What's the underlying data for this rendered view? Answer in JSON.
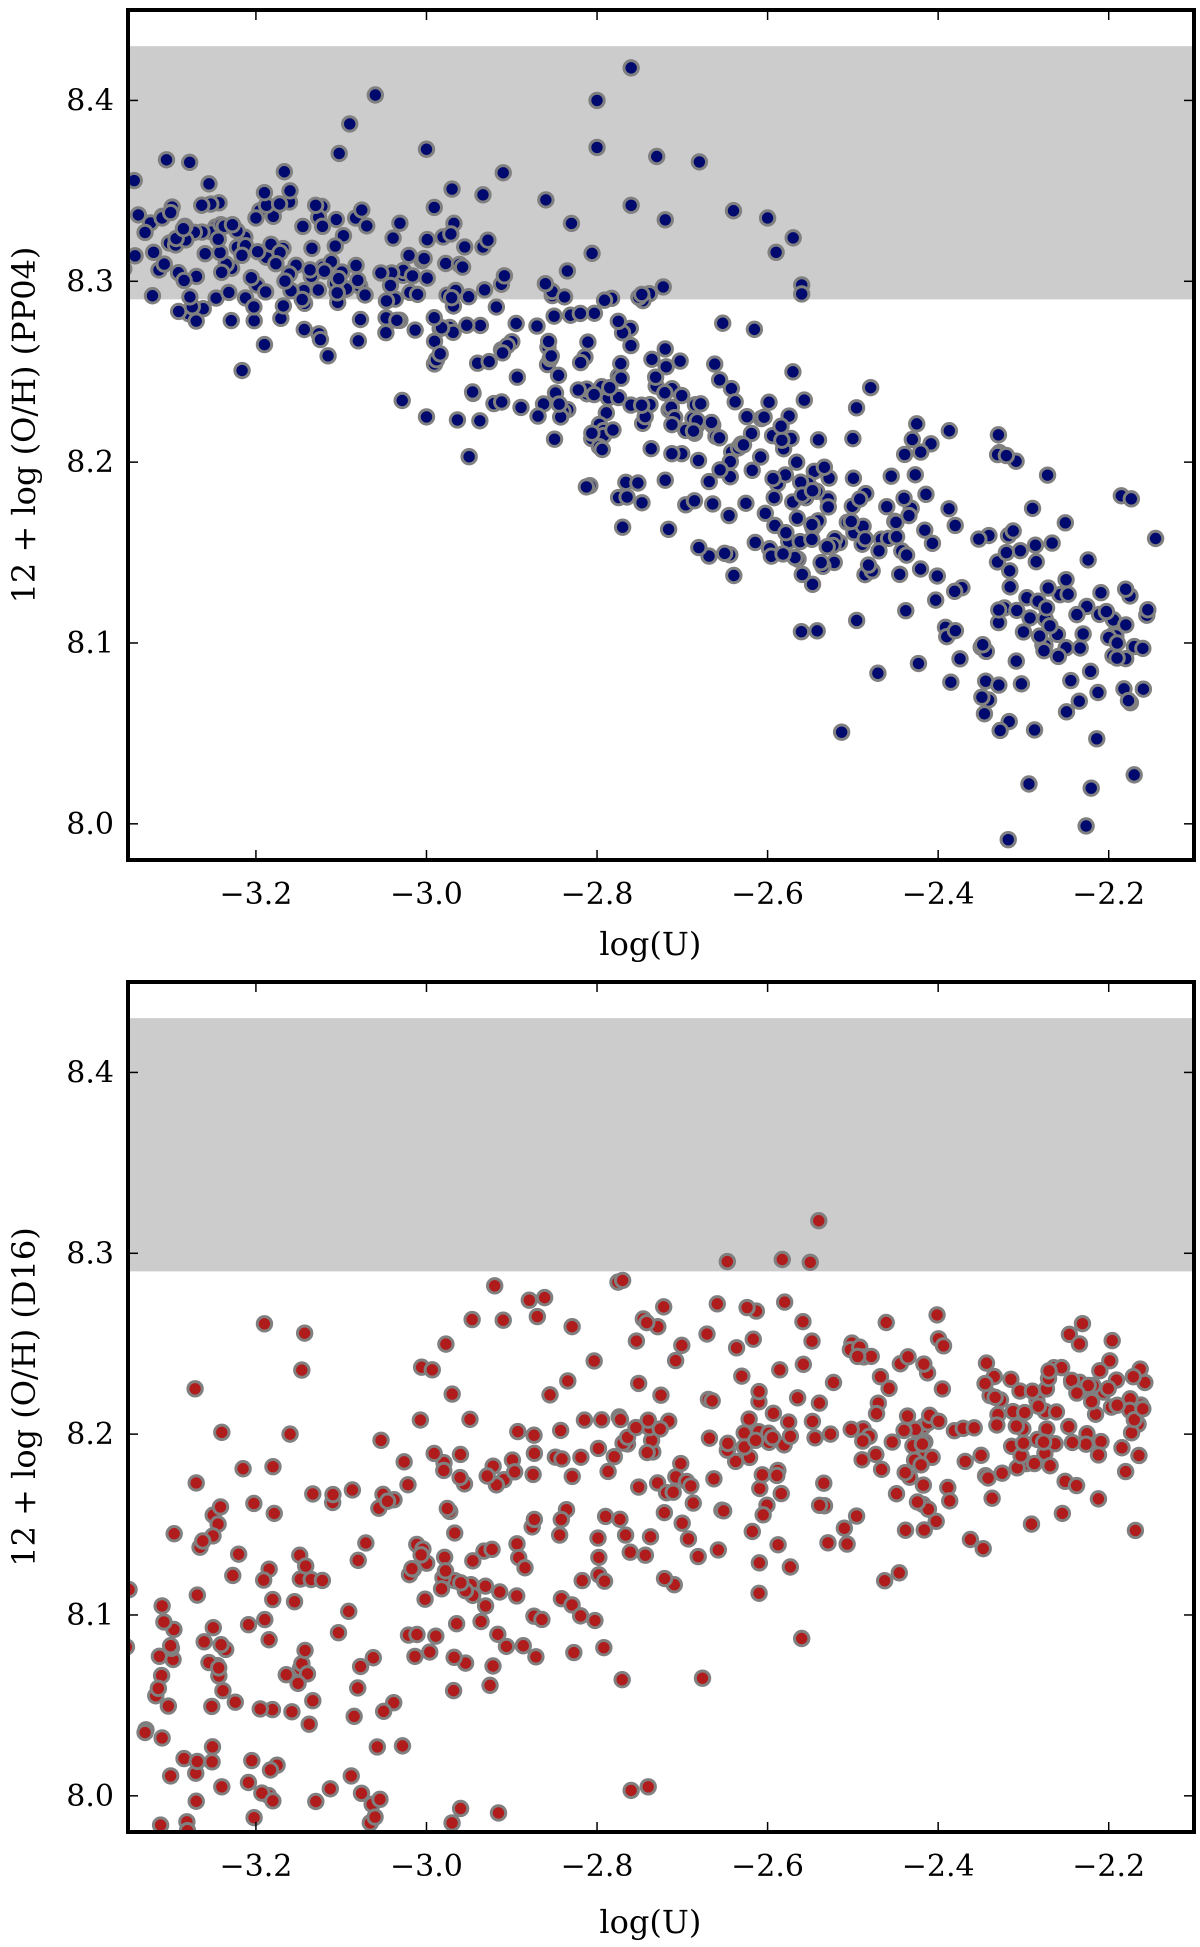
{
  "chart_data": [
    {
      "type": "scatter",
      "panel": "top",
      "xlabel": "log(U)",
      "ylabel": "12 + log (O/H) (PP04)",
      "xlim": [
        -3.35,
        -2.1
      ],
      "ylim": [
        7.98,
        8.45
      ],
      "xticks": [
        -3.2,
        -3.0,
        -2.8,
        -2.6,
        -2.4,
        -2.2
      ],
      "xtick_labels": [
        "−3.2",
        "−3.0",
        "−2.8",
        "−2.6",
        "−2.4",
        "−2.2"
      ],
      "yticks": [
        8.0,
        8.1,
        8.2,
        8.3,
        8.4
      ],
      "ytick_labels": [
        "8.0",
        "8.1",
        "8.2",
        "8.3",
        "8.4"
      ],
      "band": {
        "y_low": 8.29,
        "y_high": 8.43,
        "color": "#cccccc"
      },
      "marker_fill": "#000a6e",
      "marker_edge": "#808080",
      "trend": {
        "description": "decreasing",
        "anchors_x": [
          -3.33,
          -3.2,
          -3.0,
          -2.8,
          -2.7,
          -2.6,
          -2.5,
          -2.4,
          -2.3,
          -2.17
        ],
        "anchors_y": [
          8.325,
          8.315,
          8.29,
          8.245,
          8.225,
          8.195,
          8.165,
          8.14,
          8.12,
          8.1
        ],
        "spread_low": 0.022,
        "spread_high": 0.05,
        "n_points": 520,
        "seed": 7
      },
      "series": [
        {
          "name": "PP04",
          "points": [
            [
              -3.33,
              8.327
            ],
            [
              -3.31,
              8.335
            ],
            [
              -3.3,
              8.338
            ],
            [
              -3.32,
              8.316
            ],
            [
              -3.27,
              8.278
            ],
            [
              -3.19,
              8.265
            ],
            [
              -3.2,
              8.335
            ],
            [
              -3.19,
              8.349
            ],
            [
              -3.16,
              8.35
            ],
            [
              -3.13,
              8.342
            ],
            [
              -3.09,
              8.387
            ],
            [
              -3.06,
              8.403
            ],
            [
              -3.0,
              8.373
            ],
            [
              -2.97,
              8.351
            ],
            [
              -2.91,
              8.36
            ],
            [
              -2.86,
              8.345
            ],
            [
              -2.83,
              8.332
            ],
            [
              -2.8,
              8.4
            ],
            [
              -2.8,
              8.374
            ],
            [
              -2.76,
              8.418
            ],
            [
              -2.73,
              8.369
            ],
            [
              -2.76,
              8.342
            ],
            [
              -2.72,
              8.334
            ],
            [
              -2.68,
              8.366
            ],
            [
              -2.64,
              8.339
            ],
            [
              -2.6,
              8.335
            ],
            [
              -2.59,
              8.316
            ],
            [
              -2.57,
              8.324
            ],
            [
              -2.56,
              8.298
            ],
            [
              -2.56,
              8.293
            ],
            [
              -3.0,
              8.225
            ],
            [
              -2.95,
              8.203
            ],
            [
              -2.77,
              8.164
            ],
            [
              -2.72,
              8.19
            ],
            [
              -2.5,
              8.213
            ],
            [
              -2.44,
              8.18
            ],
            [
              -2.38,
              8.165
            ],
            [
              -2.32,
              8.15
            ],
            [
              -2.25,
              8.135
            ],
            [
              -2.23,
              8.105
            ],
            [
              -2.2,
              8.103
            ],
            [
              -2.18,
              8.11
            ],
            [
              -2.17,
              8.098
            ],
            [
              -2.16,
              8.097
            ],
            [
              -2.19,
              8.1
            ]
          ]
        }
      ]
    },
    {
      "type": "scatter",
      "panel": "bottom",
      "xlabel": "log(U)",
      "ylabel": "12 + log (O/H) (D16)",
      "xlim": [
        -3.35,
        -2.1
      ],
      "ylim": [
        7.98,
        8.45
      ],
      "xticks": [
        -3.2,
        -3.0,
        -2.8,
        -2.6,
        -2.4,
        -2.2
      ],
      "xtick_labels": [
        "−3.2",
        "−3.0",
        "−2.8",
        "−2.6",
        "−2.4",
        "−2.2"
      ],
      "yticks": [
        8.0,
        8.1,
        8.2,
        8.3,
        8.4
      ],
      "ytick_labels": [
        "8.0",
        "8.1",
        "8.2",
        "8.3",
        "8.4"
      ],
      "band": {
        "y_low": 8.29,
        "y_high": 8.43,
        "color": "#cccccc"
      },
      "marker_fill": "#b01c1c",
      "marker_edge": "#808080",
      "trend": {
        "description": "increasing",
        "anchors_x": [
          -3.33,
          -3.2,
          -3.0,
          -2.8,
          -2.7,
          -2.6,
          -2.5,
          -2.4,
          -2.3,
          -2.17
        ],
        "anchors_y": [
          8.06,
          8.08,
          8.12,
          8.17,
          8.19,
          8.195,
          8.2,
          8.205,
          8.205,
          8.21
        ],
        "spread_low": 0.08,
        "spread_high": 0.025,
        "n_points": 470,
        "seed": 13
      },
      "series": [
        {
          "name": "D16",
          "points": [
            [
              -3.33,
              8.035
            ],
            [
              -3.31,
              8.032
            ],
            [
              -3.3,
              8.011
            ],
            [
              -3.27,
              7.997
            ],
            [
              -3.24,
              8.005
            ],
            [
              -3.31,
              8.105
            ],
            [
              -3.3,
              8.083
            ],
            [
              -3.25,
              8.093
            ],
            [
              -3.27,
              8.173
            ],
            [
              -3.24,
              8.201
            ],
            [
              -3.19,
              8.261
            ],
            [
              -3.16,
              8.2
            ],
            [
              -3.18,
              8.182
            ],
            [
              -2.97,
              7.985
            ],
            [
              -2.96,
              7.993
            ],
            [
              -2.92,
              8.282
            ],
            [
              -2.91,
              8.263
            ],
            [
              -2.87,
              8.265
            ],
            [
              -2.77,
              8.285
            ],
            [
              -2.76,
              8.003
            ],
            [
              -2.74,
              8.005
            ],
            [
              -2.58,
              8.273
            ],
            [
              -2.55,
              8.295
            ],
            [
              -2.54,
              8.318
            ],
            [
              -2.51,
              8.148
            ],
            [
              -2.56,
              8.087
            ],
            [
              -2.61,
              8.112
            ],
            [
              -2.27,
              8.235
            ],
            [
              -2.22,
              8.218
            ],
            [
              -2.19,
              8.216
            ],
            [
              -2.17,
              8.208
            ],
            [
              -2.16,
              8.214
            ],
            [
              -2.3,
              8.195
            ],
            [
              -2.42,
              8.183
            ],
            [
              -2.44,
              8.202
            ]
          ]
        }
      ]
    }
  ]
}
